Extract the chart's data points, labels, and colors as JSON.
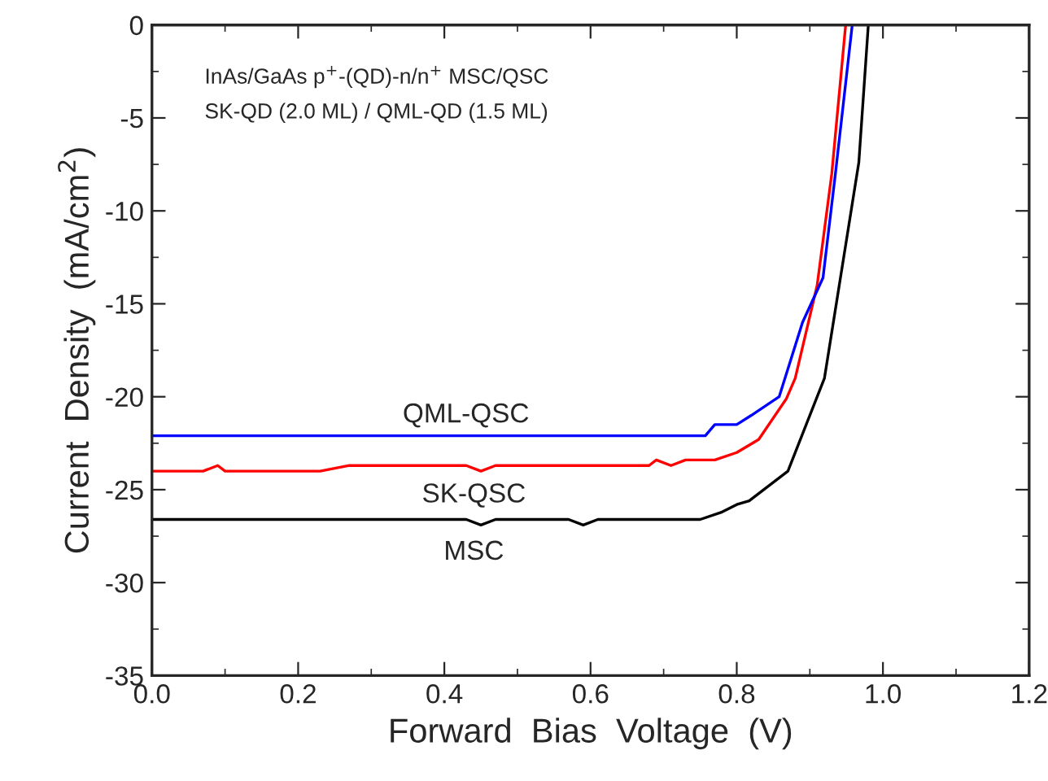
{
  "chart_data": {
    "type": "line",
    "xlabel": "Forward  Bias  Voltage  (V)",
    "ylabel": "Current  Density  (mA/cm$^{2}$)",
    "xlim": [
      0,
      1.2
    ],
    "xticks": [
      {
        "value": 0,
        "label": "0.0"
      },
      {
        "value": 0.2,
        "label": "0.2"
      },
      {
        "value": 0.4,
        "label": "0.4"
      },
      {
        "value": 0.6,
        "label": "0.6"
      },
      {
        "value": 0.8,
        "label": "0.8"
      },
      {
        "value": 1.0,
        "label": "1.0"
      },
      {
        "value": 1.2,
        "label": "1.2"
      }
    ],
    "ylim": [
      -35,
      0
    ],
    "yticks": [
      -35,
      -30,
      -25,
      -20,
      -15,
      -10,
      -5,
      0
    ],
    "grid": false,
    "legend": false,
    "marker": "none",
    "line_style": "solid",
    "series": [
      {
        "color": "#000000",
        "x": [
          0,
          0.43,
          0.45,
          0.47,
          0.57,
          0.59,
          0.61,
          0.75,
          0.78,
          0.8,
          0.817,
          0.87,
          0.92,
          0.967,
          0.98
        ],
        "values": [
          -26.6,
          -26.6,
          -26.9,
          -26.6,
          -26.6,
          -26.9,
          -26.6,
          -26.6,
          -26.2,
          -25.8,
          -25.6,
          -24,
          -19,
          -7.4,
          0
        ]
      },
      {
        "color": "#ff0000",
        "x": [
          0,
          0.07,
          0.09,
          0.1,
          0.23,
          0.27,
          0.43,
          0.45,
          0.47,
          0.68,
          0.69,
          0.71,
          0.73,
          0.77,
          0.8,
          0.83,
          0.868,
          0.88,
          0.91,
          0.93,
          0.949
        ],
        "values": [
          -24,
          -24,
          -23.7,
          -24,
          -24,
          -23.7,
          -23.7,
          -24,
          -23.7,
          -23.7,
          -23.4,
          -23.7,
          -23.4,
          -23.4,
          -23,
          -22.3,
          -20.1,
          -19,
          -14,
          -8,
          0
        ]
      },
      {
        "color": "#0000ff",
        "x": [
          0,
          0.757,
          0.77,
          0.8,
          0.82,
          0.858,
          0.87,
          0.89,
          0.918,
          0.935,
          0.958
        ],
        "values": [
          -22.1,
          -22.1,
          -21.5,
          -21.5,
          -21,
          -20,
          -18.5,
          -16,
          -13.6,
          -8,
          0
        ]
      }
    ],
    "annotations": [
      "InAs/GaAs p$^{+}$-(QD)-n/n$^{+}$ MSC/QSC",
      "SK-QD (2.0 ML) / QML-QD (1.5 ML)",
      "QML-QSC",
      "SK-QSC",
      "MSC"
    ]
  }
}
